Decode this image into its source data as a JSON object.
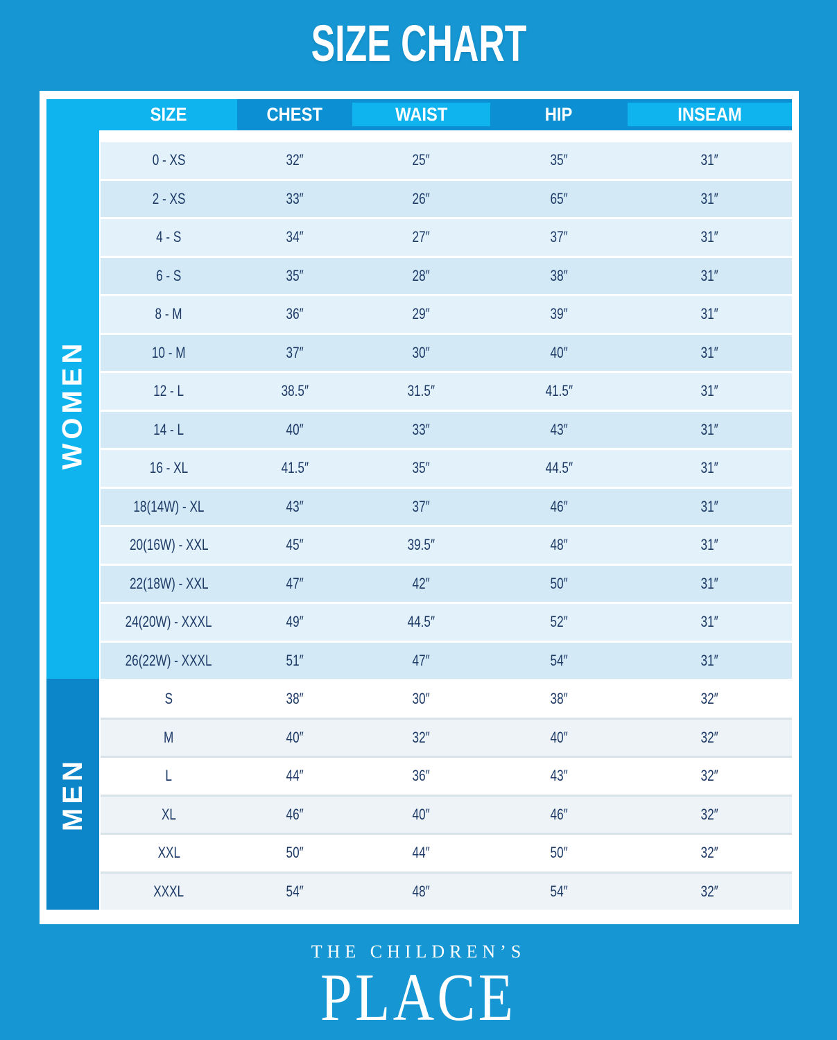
{
  "title": "SIZE CHART",
  "table": {
    "columns": [
      "SIZE",
      "CHEST",
      "WAIST",
      "HIP",
      "INSEAM"
    ],
    "column_keys": [
      "size",
      "chest",
      "waist",
      "hip",
      "inseam"
    ],
    "sections": [
      {
        "label": "WOMEN",
        "rows": [
          [
            "0 - XS",
            "32″",
            "25″",
            "35″",
            "31″"
          ],
          [
            "2 - XS",
            "33″",
            "26″",
            "65″",
            "31″"
          ],
          [
            "4 - S",
            "34″",
            "27″",
            "37″",
            "31″"
          ],
          [
            "6 - S",
            "35″",
            "28″",
            "38″",
            "31″"
          ],
          [
            "8 - M",
            "36″",
            "29″",
            "39″",
            "31″"
          ],
          [
            "10 - M",
            "37″",
            "30″",
            "40″",
            "31″"
          ],
          [
            "12 - L",
            "38.5″",
            "31.5″",
            "41.5″",
            "31″"
          ],
          [
            "14 - L",
            "40″",
            "33″",
            "43″",
            "31″"
          ],
          [
            "16 - XL",
            "41.5″",
            "35″",
            "44.5″",
            "31″"
          ],
          [
            "18(14W) - XL",
            "43″",
            "37″",
            "46″",
            "31″"
          ],
          [
            "20(16W) - XXL",
            "45″",
            "39.5″",
            "48″",
            "31″"
          ],
          [
            "22(18W) - XXL",
            "47″",
            "42″",
            "50″",
            "31″"
          ],
          [
            "24(20W) - XXXL",
            "49″",
            "44.5″",
            "52″",
            "31″"
          ],
          [
            "26(22W) - XXXL",
            "51″",
            "47″",
            "54″",
            "31″"
          ]
        ]
      },
      {
        "label": "MEN",
        "rows": [
          [
            "S",
            "38″",
            "30″",
            "38″",
            "32″"
          ],
          [
            "M",
            "40″",
            "32″",
            "40″",
            "32″"
          ],
          [
            "L",
            "44″",
            "36″",
            "43″",
            "32″"
          ],
          [
            "XL",
            "46″",
            "40″",
            "46″",
            "32″"
          ],
          [
            "XXL",
            "50″",
            "44″",
            "50″",
            "32″"
          ],
          [
            "XXXL",
            "54″",
            "48″",
            "54″",
            "32″"
          ]
        ]
      }
    ]
  },
  "brand": {
    "line1": "THE CHILDREN’S",
    "line2": "PLACE"
  },
  "colors": {
    "background": "#1697D3",
    "cyan": "#0FB4EF",
    "header_dark": "#0C90D3",
    "men_sidebar": "#0D86C9",
    "women_row_light": "#E3F2FA",
    "women_row_dark": "#D3E9F5",
    "men_row_light": "#FFFFFF",
    "men_row_dark": "#EEF3F7",
    "text": "#1D3A67",
    "title_text": "#FFFFFF"
  },
  "chart_data": {
    "type": "table",
    "title": "SIZE CHART",
    "columns": [
      "SIZE",
      "CHEST",
      "WAIST",
      "HIP",
      "INSEAM"
    ],
    "row_groups": [
      {
        "group": "WOMEN",
        "rows": [
          [
            "0 - XS",
            "32″",
            "25″",
            "35″",
            "31″"
          ],
          [
            "2 - XS",
            "33″",
            "26″",
            "65″",
            "31″"
          ],
          [
            "4 - S",
            "34″",
            "27″",
            "37″",
            "31″"
          ],
          [
            "6 - S",
            "35″",
            "28″",
            "38″",
            "31″"
          ],
          [
            "8 - M",
            "36″",
            "29″",
            "39″",
            "31″"
          ],
          [
            "10 - M",
            "37″",
            "30″",
            "40″",
            "31″"
          ],
          [
            "12 - L",
            "38.5″",
            "31.5″",
            "41.5″",
            "31″"
          ],
          [
            "14 - L",
            "40″",
            "33″",
            "43″",
            "31″"
          ],
          [
            "16 - XL",
            "41.5″",
            "35″",
            "44.5″",
            "31″"
          ],
          [
            "18(14W) - XL",
            "43″",
            "37″",
            "46″",
            "31″"
          ],
          [
            "20(16W) - XXL",
            "45″",
            "39.5″",
            "48″",
            "31″"
          ],
          [
            "22(18W) - XXL",
            "47″",
            "42″",
            "50″",
            "31″"
          ],
          [
            "24(20W) - XXXL",
            "49″",
            "44.5″",
            "52″",
            "31″"
          ],
          [
            "26(22W) - XXXL",
            "51″",
            "47″",
            "54″",
            "31″"
          ]
        ]
      },
      {
        "group": "MEN",
        "rows": [
          [
            "S",
            "38″",
            "30″",
            "38″",
            "32″"
          ],
          [
            "M",
            "40″",
            "32″",
            "40″",
            "32″"
          ],
          [
            "L",
            "44″",
            "36″",
            "43″",
            "32″"
          ],
          [
            "XL",
            "46″",
            "40″",
            "46″",
            "32″"
          ],
          [
            "XXL",
            "50″",
            "44″",
            "50″",
            "32″"
          ],
          [
            "XXXL",
            "54″",
            "48″",
            "54″",
            "32″"
          ]
        ]
      }
    ]
  }
}
